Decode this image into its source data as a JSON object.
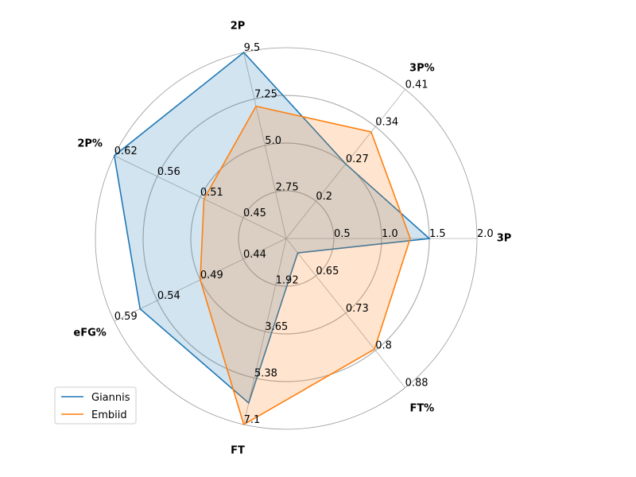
{
  "chart_data": {
    "type": "radar",
    "title": "",
    "grid": true,
    "legend_position": "lower-left",
    "axes": [
      {
        "label": "3P",
        "ticks": [
          "0.5",
          "1.0",
          "1.5",
          "2.0"
        ],
        "min": 0,
        "max": 2.0
      },
      {
        "label": "3P%",
        "ticks": [
          "0.2",
          "0.27",
          "0.34",
          "0.41"
        ],
        "min": 0.13,
        "max": 0.41
      },
      {
        "label": "2P",
        "ticks": [
          "2.75",
          "5.0",
          "7.25",
          "9.5"
        ],
        "min": 0.5,
        "max": 9.5
      },
      {
        "label": "2P%",
        "ticks": [
          "0.45",
          "0.51",
          "0.56",
          "0.62"
        ],
        "min": 0.39,
        "max": 0.62
      },
      {
        "label": "eFG%",
        "ticks": [
          "0.44",
          "0.49",
          "0.54",
          "0.59"
        ],
        "min": 0.39,
        "max": 0.59
      },
      {
        "label": "FT",
        "ticks": [
          "1.92",
          "3.65",
          "5.38",
          "7.1"
        ],
        "min": 0.19,
        "max": 7.1
      },
      {
        "label": "FT%",
        "ticks": [
          "0.65",
          "0.73",
          "0.8",
          "0.88"
        ],
        "min": 0.57,
        "max": 0.88
      }
    ],
    "series": [
      {
        "name": "Giannis",
        "color": "#1f77b4",
        "values": [
          1.5,
          0.27,
          9.5,
          0.62,
          0.56,
          6.3,
          0.6
        ]
      },
      {
        "name": "Embiid",
        "color": "#ff7f0e",
        "values": [
          1.3,
          0.33,
          6.9,
          0.5,
          0.49,
          7.1,
          0.8
        ]
      }
    ]
  }
}
